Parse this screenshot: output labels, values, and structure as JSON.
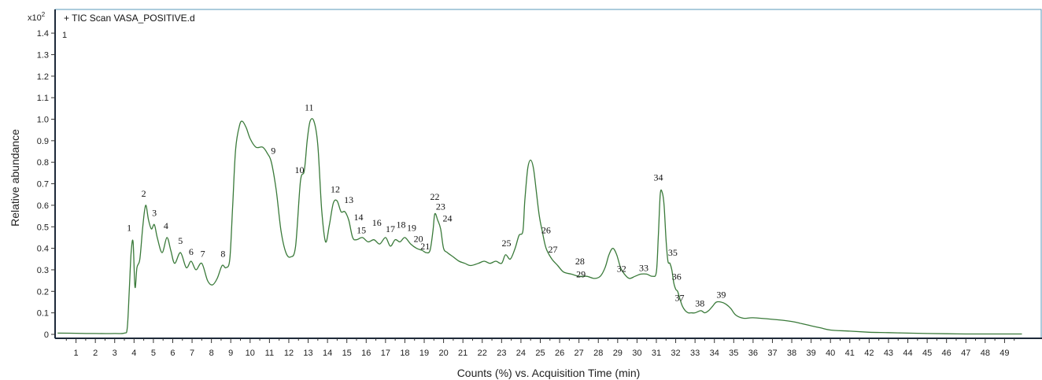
{
  "chart_data": {
    "type": "line",
    "scan_title": "+ TIC Scan VASA_POSITIVE.d",
    "corner_label": "1",
    "y_multiplier": "x10",
    "y_multiplier_exp": "2",
    "xlabel": "Counts (%) vs. Acquisition Time (min)",
    "ylabel": "Relative abundance",
    "xlim": [
      0,
      49.9
    ],
    "ylim": [
      -0.02,
      1.45
    ],
    "xticks": [
      1,
      2,
      3,
      4,
      5,
      6,
      7,
      8,
      9,
      10,
      11,
      12,
      13,
      14,
      15,
      16,
      17,
      18,
      19,
      20,
      21,
      22,
      23,
      24,
      25,
      26,
      27,
      28,
      29,
      30,
      31,
      32,
      33,
      34,
      35,
      36,
      37,
      38,
      39,
      40,
      41,
      42,
      43,
      44,
      45,
      46,
      47,
      48,
      49
    ],
    "yticks": [
      {
        "v": 0,
        "label": "0"
      },
      {
        "v": 0.1,
        "label": "0.1"
      },
      {
        "v": 0.2,
        "label": "0.2"
      },
      {
        "v": 0.3,
        "label": "0.3"
      },
      {
        "v": 0.4,
        "label": "0.4"
      },
      {
        "v": 0.5,
        "label": "0.5"
      },
      {
        "v": 0.6,
        "label": "0.6"
      },
      {
        "v": 0.7,
        "label": "0.7"
      },
      {
        "v": 0.8,
        "label": "0.8"
      },
      {
        "v": 0.9,
        "label": "0.9"
      },
      {
        "v": 1.0,
        "label": "1.0"
      },
      {
        "v": 1.1,
        "label": "1.1"
      },
      {
        "v": 1.2,
        "label": "1.2"
      },
      {
        "v": 1.3,
        "label": "1.3"
      },
      {
        "v": 1.4,
        "label": "1.4"
      }
    ],
    "line_color": "#3a7a3a",
    "frame_color": "#5a9ab8",
    "series": [
      {
        "x": [
          0.05,
          1,
          2,
          3,
          3.5,
          3.65,
          3.75,
          3.85,
          3.95,
          4.05,
          4.15,
          4.3,
          4.45,
          4.6,
          4.75,
          4.9,
          5.05,
          5.2,
          5.45,
          5.7,
          5.9,
          6.1,
          6.4,
          6.7,
          6.95,
          7.2,
          7.5,
          7.8,
          8.05,
          8.3,
          8.55,
          8.75,
          8.95,
          9.1,
          9.25,
          9.45,
          9.6,
          9.8,
          10,
          10.3,
          10.65,
          10.9,
          11.1,
          11.35,
          11.6,
          11.85,
          12.1,
          12.35,
          12.6,
          12.8,
          12.95,
          13.1,
          13.3,
          13.5,
          13.7,
          13.9,
          14.1,
          14.3,
          14.5,
          14.7,
          14.9,
          15.1,
          15.3,
          15.5,
          15.8,
          16.1,
          16.4,
          16.7,
          17.0,
          17.25,
          17.5,
          17.75,
          18.0,
          18.3,
          18.6,
          18.9,
          19.1,
          19.3,
          19.45,
          19.55,
          19.7,
          19.85,
          20.0,
          20.2,
          20.5,
          20.8,
          21.1,
          21.4,
          21.8,
          22.1,
          22.4,
          22.7,
          23.0,
          23.2,
          23.45,
          23.7,
          23.9,
          24.1,
          24.2,
          24.35,
          24.5,
          24.65,
          24.8,
          24.95,
          25.1,
          25.3,
          25.6,
          25.9,
          26.2,
          26.6,
          27.0,
          27.4,
          27.8,
          28.1,
          28.35,
          28.55,
          28.75,
          28.95,
          29.15,
          29.35,
          29.6,
          29.9,
          30.2,
          30.5,
          30.8,
          31.0,
          31.1,
          31.2,
          31.3,
          31.4,
          31.5,
          31.6,
          31.7,
          31.8,
          31.9,
          32.0,
          32.1,
          32.2,
          32.35,
          32.5,
          32.65,
          32.8,
          33.0,
          33.3,
          33.5,
          33.7,
          33.9,
          34.1,
          34.35,
          34.6,
          34.85,
          35.1,
          35.5,
          36,
          37,
          38,
          38.5,
          39,
          39.5,
          40,
          41,
          42,
          43,
          44,
          45,
          46,
          47,
          48,
          49,
          49.9
        ],
        "values": [
          0.006,
          0.005,
          0.004,
          0.004,
          0.006,
          0.03,
          0.2,
          0.38,
          0.43,
          0.22,
          0.31,
          0.35,
          0.5,
          0.6,
          0.53,
          0.49,
          0.51,
          0.45,
          0.38,
          0.45,
          0.39,
          0.33,
          0.38,
          0.31,
          0.34,
          0.3,
          0.33,
          0.25,
          0.23,
          0.26,
          0.32,
          0.31,
          0.35,
          0.6,
          0.86,
          0.97,
          0.99,
          0.96,
          0.91,
          0.87,
          0.87,
          0.84,
          0.8,
          0.67,
          0.48,
          0.38,
          0.36,
          0.41,
          0.71,
          0.76,
          0.9,
          0.99,
          0.99,
          0.88,
          0.58,
          0.43,
          0.51,
          0.61,
          0.62,
          0.57,
          0.57,
          0.53,
          0.45,
          0.44,
          0.45,
          0.43,
          0.44,
          0.42,
          0.45,
          0.41,
          0.44,
          0.43,
          0.45,
          0.42,
          0.4,
          0.39,
          0.38,
          0.39,
          0.48,
          0.56,
          0.53,
          0.49,
          0.4,
          0.38,
          0.36,
          0.34,
          0.33,
          0.32,
          0.33,
          0.34,
          0.33,
          0.34,
          0.33,
          0.37,
          0.35,
          0.4,
          0.46,
          0.48,
          0.62,
          0.77,
          0.81,
          0.77,
          0.66,
          0.55,
          0.48,
          0.4,
          0.35,
          0.32,
          0.29,
          0.28,
          0.27,
          0.27,
          0.26,
          0.27,
          0.31,
          0.37,
          0.4,
          0.37,
          0.31,
          0.28,
          0.26,
          0.27,
          0.28,
          0.28,
          0.27,
          0.29,
          0.45,
          0.65,
          0.66,
          0.6,
          0.44,
          0.34,
          0.33,
          0.3,
          0.24,
          0.21,
          0.2,
          0.17,
          0.13,
          0.11,
          0.1,
          0.1,
          0.1,
          0.11,
          0.1,
          0.11,
          0.13,
          0.15,
          0.15,
          0.14,
          0.12,
          0.09,
          0.075,
          0.077,
          0.07,
          0.06,
          0.05,
          0.04,
          0.03,
          0.02,
          0.015,
          0.01,
          0.008,
          0.006,
          0.004,
          0.003,
          0.002,
          0.002,
          0.002,
          0.002
        ]
      }
    ],
    "annotations": [
      {
        "text": "1",
        "x": 3.75,
        "y": 0.48
      },
      {
        "text": "2",
        "x": 4.5,
        "y": 0.64
      },
      {
        "text": "3",
        "x": 5.05,
        "y": 0.55
      },
      {
        "text": "4",
        "x": 5.65,
        "y": 0.49
      },
      {
        "text": "5",
        "x": 6.4,
        "y": 0.42
      },
      {
        "text": "6",
        "x": 6.95,
        "y": 0.37
      },
      {
        "text": "7",
        "x": 7.55,
        "y": 0.36
      },
      {
        "text": "8",
        "x": 8.6,
        "y": 0.36
      },
      {
        "text": "9",
        "x": 11.2,
        "y": 0.84
      },
      {
        "text": "10",
        "x": 12.55,
        "y": 0.75
      },
      {
        "text": "11",
        "x": 13.05,
        "y": 1.04
      },
      {
        "text": "12",
        "x": 14.4,
        "y": 0.66
      },
      {
        "text": "13",
        "x": 15.1,
        "y": 0.61
      },
      {
        "text": "14",
        "x": 15.6,
        "y": 0.53
      },
      {
        "text": "15",
        "x": 15.75,
        "y": 0.47
      },
      {
        "text": "16",
        "x": 16.55,
        "y": 0.505
      },
      {
        "text": "17",
        "x": 17.25,
        "y": 0.475
      },
      {
        "text": "18",
        "x": 17.8,
        "y": 0.495
      },
      {
        "text": "19",
        "x": 18.35,
        "y": 0.48
      },
      {
        "text": "20",
        "x": 18.7,
        "y": 0.43
      },
      {
        "text": "21",
        "x": 19.05,
        "y": 0.395
      },
      {
        "text": "22",
        "x": 19.55,
        "y": 0.625
      },
      {
        "text": "23",
        "x": 19.85,
        "y": 0.58
      },
      {
        "text": "24",
        "x": 20.2,
        "y": 0.525
      },
      {
        "text": "25",
        "x": 23.25,
        "y": 0.41
      },
      {
        "text": "26",
        "x": 25.3,
        "y": 0.47
      },
      {
        "text": "27",
        "x": 25.65,
        "y": 0.38
      },
      {
        "text": "28",
        "x": 27.05,
        "y": 0.325
      },
      {
        "text": "29",
        "x": 27.1,
        "y": 0.265
      },
      {
        "text": "32",
        "x": 29.2,
        "y": 0.29
      },
      {
        "text": "33",
        "x": 30.35,
        "y": 0.295
      },
      {
        "text": "34",
        "x": 31.1,
        "y": 0.715
      },
      {
        "text": "35",
        "x": 31.85,
        "y": 0.365
      },
      {
        "text": "36",
        "x": 32.05,
        "y": 0.255
      },
      {
        "text": "37",
        "x": 32.2,
        "y": 0.155
      },
      {
        "text": "38",
        "x": 33.25,
        "y": 0.13
      },
      {
        "text": "39",
        "x": 34.35,
        "y": 0.17
      }
    ]
  }
}
